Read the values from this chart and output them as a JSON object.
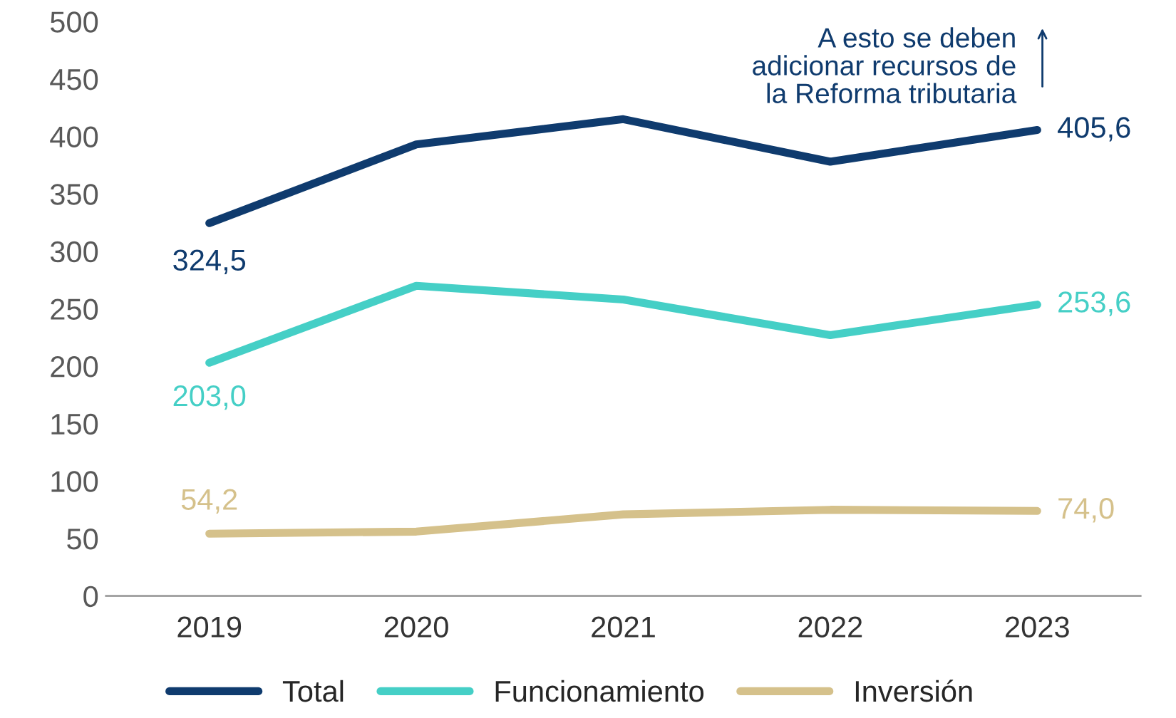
{
  "chart_data": {
    "type": "line",
    "categories": [
      "2019",
      "2020",
      "2021",
      "2022",
      "2023"
    ],
    "series": [
      {
        "name": "Total",
        "color": "#0f3b6e",
        "values": [
          324.5,
          393,
          415,
          378,
          405.6
        ],
        "value_labels": [
          "324,5",
          null,
          null,
          null,
          "405,6"
        ]
      },
      {
        "name": "Funcionamiento",
        "color": "#45cfc6",
        "values": [
          203.0,
          270,
          258,
          227,
          253.6
        ],
        "value_labels": [
          "203,0",
          null,
          null,
          null,
          "253,6"
        ]
      },
      {
        "name": "Inversión",
        "color": "#d5c18b",
        "values": [
          54.2,
          56,
          71,
          75,
          74.0
        ],
        "value_labels": [
          "54,2",
          null,
          null,
          null,
          "74,0"
        ]
      }
    ],
    "ylim": [
      0,
      500
    ],
    "yticks": [
      0,
      50,
      100,
      150,
      200,
      250,
      300,
      350,
      400,
      450,
      500
    ],
    "annotations": [
      "A esto se deben\nadicionar recursos de\nla Reforma tributaria"
    ],
    "grid": false,
    "legend": "bottom",
    "marker": "none",
    "line_style": "solid"
  }
}
